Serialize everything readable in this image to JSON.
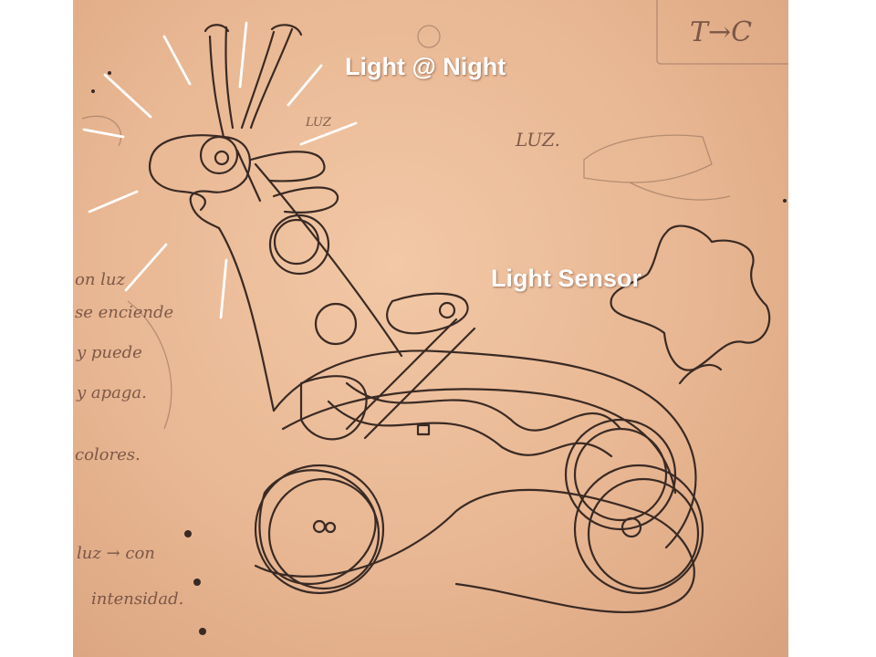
{
  "annotations": {
    "night_label": "Light @ Night",
    "sensor_label": "Light Sensor"
  },
  "sketch_notes": {
    "top_right": "T→C",
    "luz_small": "LUZ",
    "luz_large": "LUZ.",
    "left_margin_1": "on luz",
    "left_margin_2": "se enciende",
    "left_margin_3": "y puede",
    "left_margin_4": "y apaga.",
    "left_margin_5": "colores.",
    "bottom_left_1": "luz → con",
    "bottom_left_2": "intensidad."
  },
  "colors": {
    "paper": "#e8b692",
    "pencil": "#3a2a24",
    "label": "#ffffff"
  }
}
